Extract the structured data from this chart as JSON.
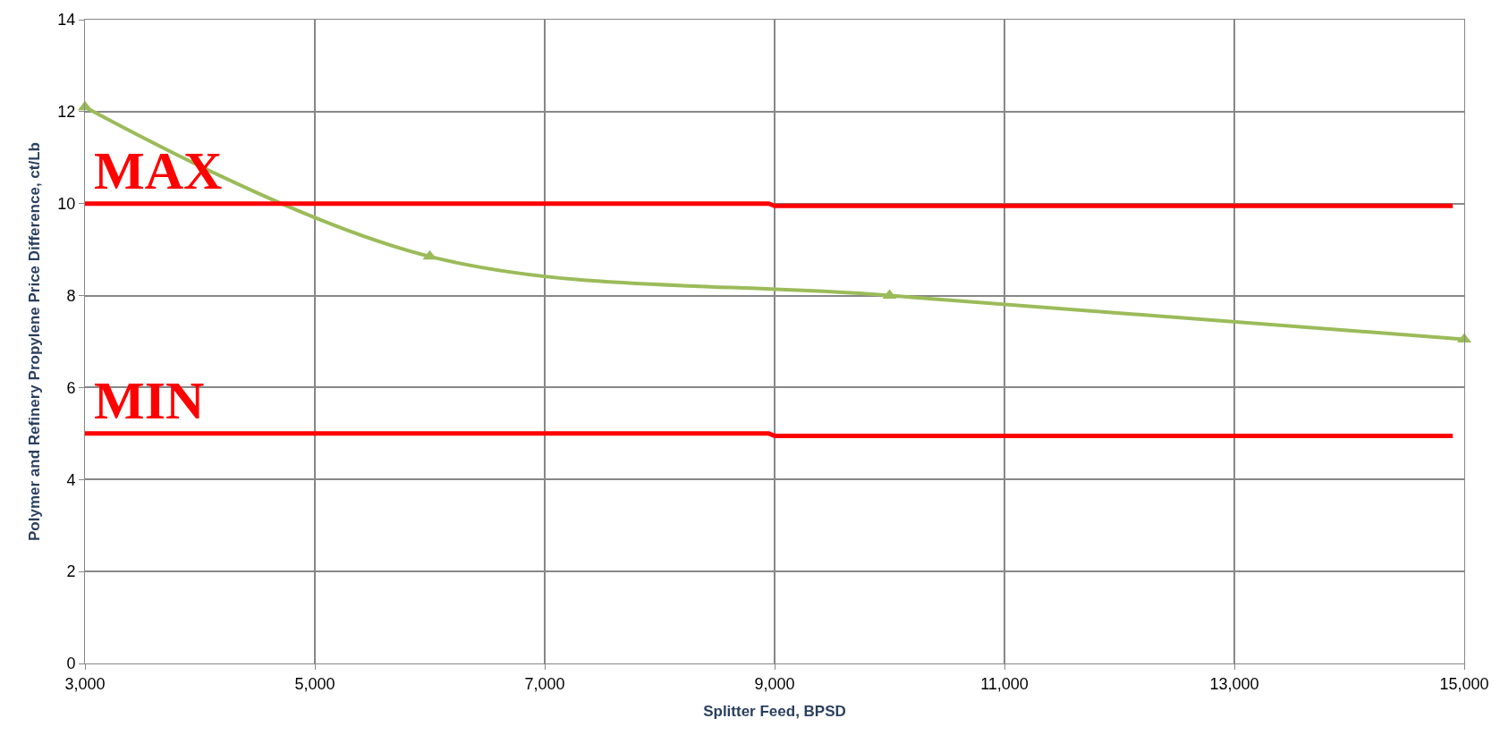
{
  "chart_data": {
    "type": "line",
    "xlabel": "Splitter Feed, BPSD",
    "ylabel": "Polymer and Refinery Propylene Price Difference, ct/Lb",
    "series": [
      {
        "x": [
          3000,
          6000,
          10000,
          15000
        ],
        "values": [
          12.1,
          8.85,
          8.0,
          7.05
        ],
        "color": "#9bbb59",
        "marker": "triangle"
      },
      {
        "name": "MAX",
        "x": [
          3000,
          8950,
          9000,
          14900
        ],
        "values": [
          10.0,
          10.0,
          9.95,
          9.95
        ],
        "color": "#ff0000",
        "marker": "none"
      },
      {
        "name": "MIN",
        "x": [
          3000,
          8950,
          9000,
          14900
        ],
        "values": [
          5.0,
          5.0,
          4.95,
          4.95
        ],
        "color": "#ff0000",
        "marker": "none"
      }
    ],
    "xlim": [
      3000,
      15000
    ],
    "xticks": [
      {
        "value": 3000,
        "label": "3,000"
      },
      {
        "value": 5000,
        "label": "5,000"
      },
      {
        "value": 7000,
        "label": "7,000"
      },
      {
        "value": 9000,
        "label": "9,000"
      },
      {
        "value": 11000,
        "label": "11,000"
      },
      {
        "value": 13000,
        "label": "13,000"
      },
      {
        "value": 15000,
        "label": "15,000"
      }
    ],
    "ylim": [
      0,
      14
    ],
    "yticks": [
      0,
      2,
      4,
      6,
      8,
      10,
      12,
      14
    ],
    "grid": true,
    "legend": false
  }
}
